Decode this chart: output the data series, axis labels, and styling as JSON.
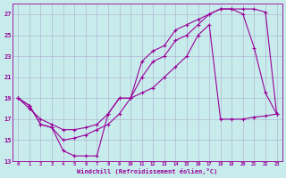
{
  "xlabel": "Windchill (Refroidissement éolien,°C)",
  "bg_color": "#c8ecec",
  "line_color": "#990099",
  "grid_color": "#aaaacc",
  "xlim": [
    -0.5,
    23.5
  ],
  "ylim": [
    13,
    28
  ],
  "xticks": [
    0,
    1,
    2,
    3,
    4,
    5,
    6,
    7,
    8,
    9,
    10,
    11,
    12,
    13,
    14,
    15,
    16,
    17,
    18,
    19,
    20,
    21,
    22,
    23
  ],
  "yticks": [
    13,
    15,
    17,
    19,
    21,
    23,
    25,
    27
  ],
  "line1_x": [
    0,
    1,
    2,
    3,
    4,
    5,
    6,
    7,
    8,
    9,
    10,
    11,
    12,
    13,
    14,
    15,
    16,
    17,
    18,
    19,
    20,
    21,
    22,
    23
  ],
  "line1_y": [
    19.0,
    18.3,
    16.5,
    16.2,
    14.0,
    13.5,
    13.5,
    13.5,
    17.5,
    19.0,
    19.0,
    22.5,
    23.5,
    24.0,
    25.5,
    26.0,
    26.5,
    27.0,
    27.5,
    27.5,
    27.0,
    23.8,
    19.5,
    17.5
  ],
  "line2_x": [
    0,
    1,
    2,
    3,
    4,
    5,
    6,
    7,
    8,
    9,
    10,
    11,
    12,
    13,
    14,
    15,
    16,
    17,
    18,
    19,
    20,
    21,
    22,
    23
  ],
  "line2_y": [
    19.0,
    18.3,
    16.5,
    16.2,
    15.0,
    15.2,
    15.5,
    16.0,
    16.5,
    17.5,
    19.0,
    21.0,
    22.5,
    23.0,
    24.5,
    25.0,
    26.0,
    27.0,
    27.5,
    27.5,
    27.5,
    27.5,
    27.2,
    17.5
  ],
  "line3_x": [
    0,
    1,
    2,
    3,
    4,
    5,
    6,
    7,
    8,
    9,
    10,
    11,
    12,
    13,
    14,
    15,
    16,
    17,
    18,
    19,
    20,
    21,
    22,
    23
  ],
  "line3_y": [
    19.0,
    18.0,
    17.0,
    16.5,
    16.0,
    16.0,
    16.2,
    16.5,
    17.5,
    19.0,
    19.0,
    19.5,
    20.0,
    21.0,
    22.0,
    23.0,
    25.0,
    26.0,
    17.0,
    17.0,
    17.0,
    17.2,
    17.3,
    17.5
  ]
}
